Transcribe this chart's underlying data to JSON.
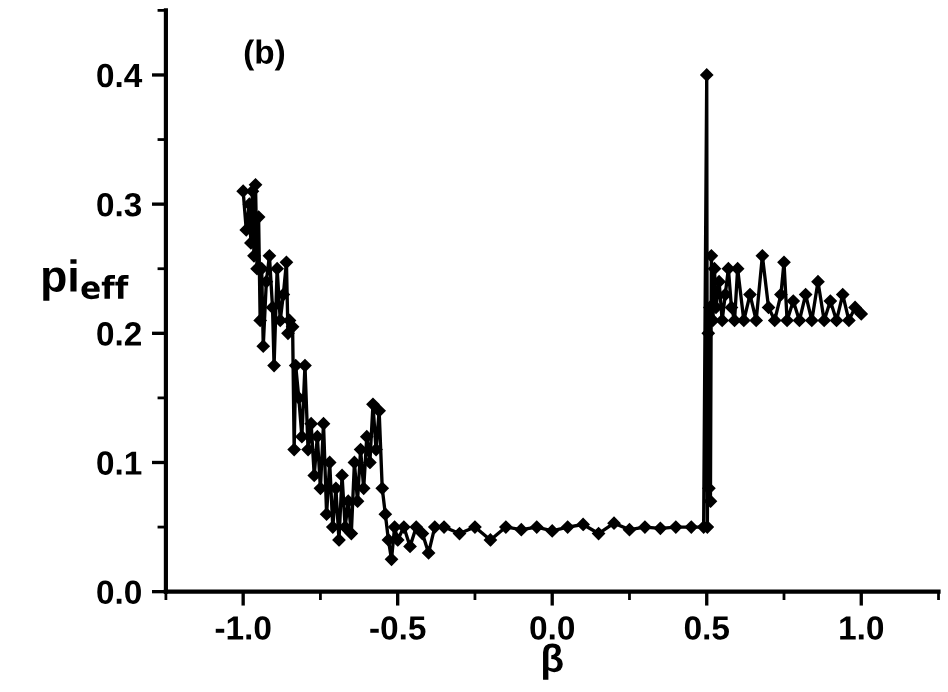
{
  "chart_data": {
    "type": "line",
    "xlabel": "β",
    "ylabel": "pi$_{eff}$",
    "annotations": [
      "(b)"
    ],
    "marker": "diamond",
    "line_style": "solid",
    "grid": false,
    "legend": false,
    "xlim": [
      -1.25,
      1.25
    ],
    "xticks": [
      {
        "value": -1.0,
        "label": "-1.0"
      },
      {
        "value": -0.5,
        "label": "-0.5"
      },
      {
        "value": 0.0,
        "label": "0.0"
      },
      {
        "value": 0.5,
        "label": "0.5"
      },
      {
        "value": 1.0,
        "label": "1.0"
      }
    ],
    "ylim": [
      0,
      0.45
    ],
    "yticks": [
      {
        "value": 0.0,
        "label": "0.0"
      },
      0.1,
      0.2,
      0.3,
      0.4
    ],
    "series": [
      {
        "color": "#000000",
        "x": [
          -1.0,
          -0.99,
          -0.98,
          -0.975,
          -0.97,
          -0.965,
          -0.96,
          -0.955,
          -0.95,
          -0.945,
          -0.94,
          -0.935,
          -0.925,
          -0.915,
          -0.905,
          -0.9,
          -0.89,
          -0.88,
          -0.87,
          -0.86,
          -0.855,
          -0.85,
          -0.84,
          -0.835,
          -0.83,
          -0.82,
          -0.81,
          -0.8,
          -0.79,
          -0.78,
          -0.77,
          -0.76,
          -0.75,
          -0.74,
          -0.73,
          -0.72,
          -0.71,
          -0.7,
          -0.69,
          -0.68,
          -0.67,
          -0.66,
          -0.65,
          -0.64,
          -0.63,
          -0.62,
          -0.61,
          -0.6,
          -0.59,
          -0.58,
          -0.57,
          -0.56,
          -0.55,
          -0.54,
          -0.53,
          -0.52,
          -0.51,
          -0.5,
          -0.48,
          -0.46,
          -0.44,
          -0.42,
          -0.4,
          -0.38,
          -0.35,
          -0.3,
          -0.25,
          -0.2,
          -0.15,
          -0.1,
          -0.05,
          0.0,
          0.05,
          0.1,
          0.15,
          0.2,
          0.25,
          0.3,
          0.35,
          0.4,
          0.45,
          0.49,
          0.5,
          0.502,
          0.505,
          0.507,
          0.51,
          0.512,
          0.515,
          0.52,
          0.525,
          0.53,
          0.54,
          0.55,
          0.56,
          0.57,
          0.58,
          0.59,
          0.6,
          0.62,
          0.64,
          0.66,
          0.68,
          0.7,
          0.72,
          0.74,
          0.75,
          0.76,
          0.78,
          0.8,
          0.82,
          0.84,
          0.86,
          0.88,
          0.9,
          0.92,
          0.94,
          0.96,
          0.98,
          1.0
        ],
        "values": [
          0.31,
          0.28,
          0.3,
          0.27,
          0.31,
          0.26,
          0.315,
          0.25,
          0.29,
          0.21,
          0.25,
          0.19,
          0.24,
          0.26,
          0.22,
          0.175,
          0.25,
          0.21,
          0.23,
          0.255,
          0.2,
          0.21,
          0.205,
          0.11,
          0.175,
          0.15,
          0.12,
          0.175,
          0.11,
          0.13,
          0.09,
          0.12,
          0.08,
          0.13,
          0.06,
          0.1,
          0.05,
          0.08,
          0.04,
          0.09,
          0.05,
          0.07,
          0.045,
          0.1,
          0.07,
          0.11,
          0.08,
          0.12,
          0.1,
          0.145,
          0.11,
          0.14,
          0.08,
          0.06,
          0.04,
          0.025,
          0.05,
          0.04,
          0.05,
          0.035,
          0.05,
          0.045,
          0.03,
          0.05,
          0.05,
          0.045,
          0.05,
          0.04,
          0.05,
          0.048,
          0.05,
          0.047,
          0.05,
          0.052,
          0.045,
          0.053,
          0.048,
          0.05,
          0.049,
          0.05,
          0.05,
          0.05,
          0.4,
          0.05,
          0.2,
          0.08,
          0.22,
          0.07,
          0.26,
          0.21,
          0.25,
          0.22,
          0.24,
          0.21,
          0.23,
          0.25,
          0.22,
          0.21,
          0.25,
          0.21,
          0.23,
          0.21,
          0.26,
          0.22,
          0.21,
          0.23,
          0.255,
          0.21,
          0.225,
          0.21,
          0.23,
          0.21,
          0.24,
          0.21,
          0.225,
          0.21,
          0.23,
          0.21,
          0.22,
          0.215
        ]
      }
    ]
  }
}
